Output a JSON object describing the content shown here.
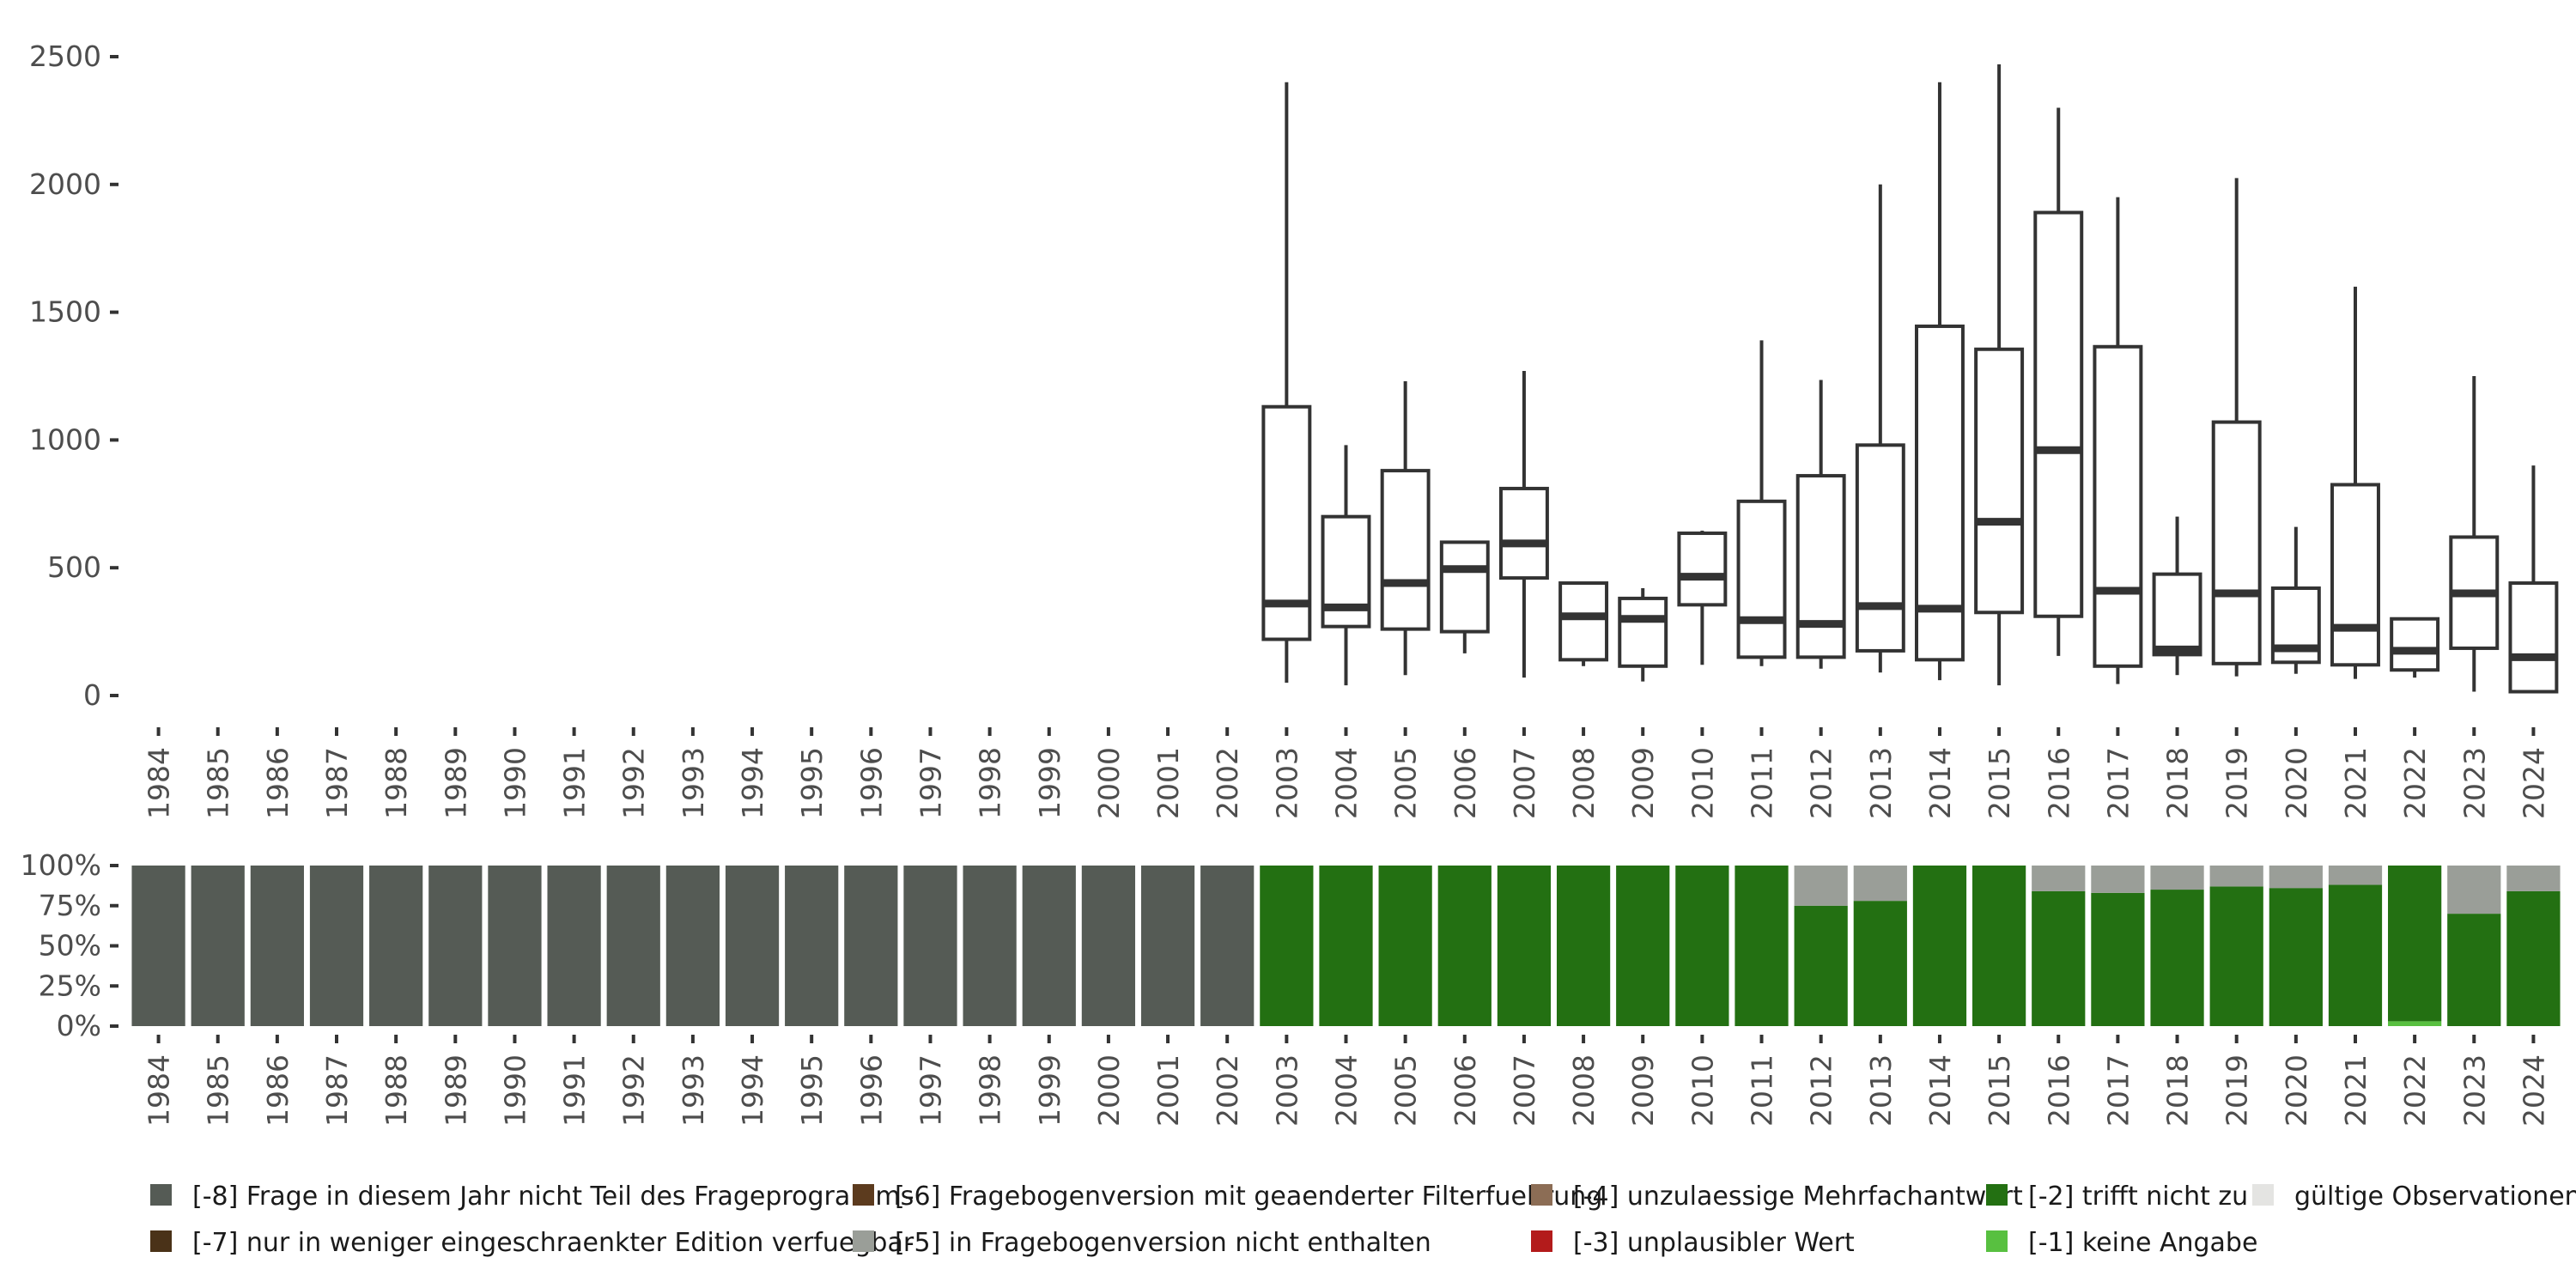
{
  "chart_data": [
    {
      "type": "box",
      "ylim": [
        0,
        2500
      ],
      "y_ticks": [
        0,
        500,
        1000,
        1500,
        2000,
        2500
      ],
      "categories": [
        "1984",
        "1985",
        "1986",
        "1987",
        "1988",
        "1989",
        "1990",
        "1991",
        "1992",
        "1993",
        "1994",
        "1995",
        "1996",
        "1997",
        "1998",
        "1999",
        "2000",
        "2001",
        "2002",
        "2003",
        "2004",
        "2005",
        "2006",
        "2007",
        "2008",
        "2009",
        "2010",
        "2011",
        "2012",
        "2013",
        "2014",
        "2015",
        "2016",
        "2017",
        "2018",
        "2019",
        "2020",
        "2021",
        "2022",
        "2023",
        "2024"
      ],
      "boxes": [
        {
          "year": "2003",
          "whisker_low": 50,
          "q1": 220,
          "median": 360,
          "q3": 1130,
          "whisker_high": 2400
        },
        {
          "year": "2004",
          "whisker_low": 40,
          "q1": 270,
          "median": 345,
          "q3": 700,
          "whisker_high": 980
        },
        {
          "year": "2005",
          "whisker_low": 80,
          "q1": 260,
          "median": 440,
          "q3": 880,
          "whisker_high": 1230
        },
        {
          "year": "2006",
          "whisker_low": 165,
          "q1": 250,
          "median": 495,
          "q3": 600,
          "whisker_high": 600
        },
        {
          "year": "2007",
          "whisker_low": 70,
          "q1": 460,
          "median": 595,
          "q3": 810,
          "whisker_high": 1270
        },
        {
          "year": "2008",
          "whisker_low": 115,
          "q1": 140,
          "median": 310,
          "q3": 440,
          "whisker_high": 440
        },
        {
          "year": "2009",
          "whisker_low": 55,
          "q1": 115,
          "median": 300,
          "q3": 380,
          "whisker_high": 420
        },
        {
          "year": "2010",
          "whisker_low": 120,
          "q1": 355,
          "median": 465,
          "q3": 635,
          "whisker_high": 645
        },
        {
          "year": "2011",
          "whisker_low": 115,
          "q1": 150,
          "median": 295,
          "q3": 760,
          "whisker_high": 1390
        },
        {
          "year": "2012",
          "whisker_low": 105,
          "q1": 150,
          "median": 280,
          "q3": 860,
          "whisker_high": 1235
        },
        {
          "year": "2013",
          "whisker_low": 90,
          "q1": 175,
          "median": 350,
          "q3": 980,
          "whisker_high": 2000
        },
        {
          "year": "2014",
          "whisker_low": 60,
          "q1": 140,
          "median": 340,
          "q3": 1445,
          "whisker_high": 2400
        },
        {
          "year": "2015",
          "whisker_low": 40,
          "q1": 325,
          "median": 680,
          "q3": 1355,
          "whisker_high": 2470
        },
        {
          "year": "2016",
          "whisker_low": 155,
          "q1": 310,
          "median": 960,
          "q3": 1890,
          "whisker_high": 2300
        },
        {
          "year": "2017",
          "whisker_low": 45,
          "q1": 115,
          "median": 410,
          "q3": 1365,
          "whisker_high": 1950
        },
        {
          "year": "2018",
          "whisker_low": 80,
          "q1": 160,
          "median": 180,
          "q3": 475,
          "whisker_high": 700
        },
        {
          "year": "2019",
          "whisker_low": 75,
          "q1": 125,
          "median": 400,
          "q3": 1070,
          "whisker_high": 2025
        },
        {
          "year": "2020",
          "whisker_low": 85,
          "q1": 130,
          "median": 185,
          "q3": 420,
          "whisker_high": 660
        },
        {
          "year": "2021",
          "whisker_low": 65,
          "q1": 120,
          "median": 265,
          "q3": 825,
          "whisker_high": 1600
        },
        {
          "year": "2022",
          "whisker_low": 70,
          "q1": 100,
          "median": 175,
          "q3": 300,
          "whisker_high": 300
        },
        {
          "year": "2023",
          "whisker_low": 15,
          "q1": 185,
          "median": 400,
          "q3": 620,
          "whisker_high": 1250
        },
        {
          "year": "2024",
          "whisker_low": 15,
          "q1": 15,
          "median": 150,
          "q3": 440,
          "whisker_high": 900
        }
      ]
    },
    {
      "type": "stacked_bar",
      "ylim": [
        0,
        1
      ],
      "y_ticks": [
        "0%",
        "25%",
        "50%",
        "75%",
        "100%"
      ],
      "y_tick_values": [
        0,
        0.25,
        0.5,
        0.75,
        1
      ],
      "categories": [
        "1984",
        "1985",
        "1986",
        "1987",
        "1988",
        "1989",
        "1990",
        "1991",
        "1992",
        "1993",
        "1994",
        "1995",
        "1996",
        "1997",
        "1998",
        "1999",
        "2000",
        "2001",
        "2002",
        "2003",
        "2004",
        "2005",
        "2006",
        "2007",
        "2008",
        "2009",
        "2010",
        "2011",
        "2012",
        "2013",
        "2014",
        "2015",
        "2016",
        "2017",
        "2018",
        "2019",
        "2020",
        "2021",
        "2022",
        "2023",
        "2024"
      ],
      "stack_order_bottom_to_top": [
        "-1",
        "-2",
        "-5",
        "-8"
      ],
      "series": [
        {
          "code": "-8",
          "values": [
            1,
            1,
            1,
            1,
            1,
            1,
            1,
            1,
            1,
            1,
            1,
            1,
            1,
            1,
            1,
            1,
            1,
            1,
            1,
            0,
            0,
            0,
            0,
            0,
            0,
            0,
            0,
            0,
            0,
            0,
            0,
            0,
            0,
            0,
            0,
            0,
            0,
            0,
            0,
            0,
            0
          ]
        },
        {
          "code": "-5",
          "values": [
            0,
            0,
            0,
            0,
            0,
            0,
            0,
            0,
            0,
            0,
            0,
            0,
            0,
            0,
            0,
            0,
            0,
            0,
            0,
            0,
            0,
            0,
            0,
            0,
            0,
            0,
            0,
            0,
            0.25,
            0.22,
            0,
            0,
            0.16,
            0.17,
            0.15,
            0.13,
            0.14,
            0.12,
            0,
            0.3,
            0.16
          ]
        },
        {
          "code": "-2",
          "values": [
            0,
            0,
            0,
            0,
            0,
            0,
            0,
            0,
            0,
            0,
            0,
            0,
            0,
            0,
            0,
            0,
            0,
            0,
            0,
            1,
            1,
            1,
            1,
            1,
            1,
            1,
            1,
            1,
            0.75,
            0.78,
            1,
            1,
            0.84,
            0.83,
            0.85,
            0.87,
            0.86,
            0.88,
            0.97,
            0.7,
            0.84
          ]
        },
        {
          "code": "-1",
          "values": [
            0,
            0,
            0,
            0,
            0,
            0,
            0,
            0,
            0,
            0,
            0,
            0,
            0,
            0,
            0,
            0,
            0,
            0,
            0,
            0,
            0,
            0,
            0,
            0,
            0,
            0,
            0,
            0,
            0,
            0,
            0,
            0,
            0,
            0,
            0,
            0,
            0,
            0,
            0.03,
            0,
            0
          ]
        }
      ]
    }
  ],
  "legend": [
    {
      "code": "-8",
      "label": "[-8] Frage in diesem Jahr nicht Teil des Frageprogramms",
      "color": "#555b55"
    },
    {
      "code": "-7",
      "label": "[-7] nur in weniger eingeschraenkter Edition verfuegbar",
      "color": "#4a3218"
    },
    {
      "code": "-6",
      "label": "[-6] Fragebogenversion mit geaenderter Filterfuehrung",
      "color": "#5c3b1e"
    },
    {
      "code": "-5",
      "label": "[-5] in Fragebogenversion nicht enthalten",
      "color": "#9a9e98"
    },
    {
      "code": "-4",
      "label": "[-4] unzulaessige Mehrfachantwort",
      "color": "#8c6d55"
    },
    {
      "code": "-3",
      "label": "[-3] unplausibler Wert",
      "color": "#b31b1b"
    },
    {
      "code": "-2",
      "label": "[-2] trifft nicht zu",
      "color": "#237012"
    },
    {
      "code": "-1",
      "label": "[-1] keine Angabe",
      "color": "#58c040"
    },
    {
      "code": "valid",
      "label": "gültige Observationen",
      "color": "#e4e4e2"
    }
  ]
}
